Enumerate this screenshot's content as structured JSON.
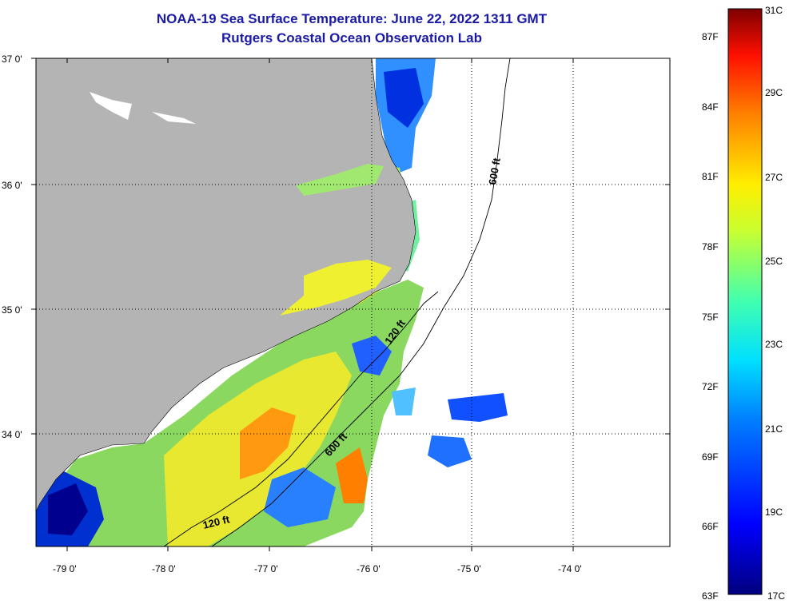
{
  "header": {
    "title_line1": "NOAA-19 Sea Surface Temperature:  June 22, 2022 1311 GMT",
    "title_line2": "Rutgers Coastal Ocean Observation Lab"
  },
  "axes": {
    "longitude_labels": [
      "-79 0'",
      "-78 0'",
      "-77 0'",
      "-76 0'",
      "-75 0'",
      "-74 0'"
    ],
    "latitude_labels": [
      "37 0'",
      "36 0'",
      "35 0'",
      "34 0'"
    ]
  },
  "contours": {
    "label_120": "120 ft",
    "label_600": "600 ft"
  },
  "color_scale": {
    "fahrenheit_labels": [
      "87F",
      "84F",
      "81F",
      "78F",
      "75F",
      "72F",
      "69F",
      "66F",
      "63F"
    ],
    "celsius_labels": [
      "31C",
      "29C",
      "27C",
      "25C",
      "23C",
      "21C",
      "19C",
      "17C"
    ],
    "range_celsius": [
      17,
      31
    ],
    "range_fahrenheit": [
      63,
      87
    ]
  },
  "colors": {
    "title": "#1a1aa6",
    "land": "#b4b4b4",
    "ocean_nodata": "#ffffff"
  }
}
